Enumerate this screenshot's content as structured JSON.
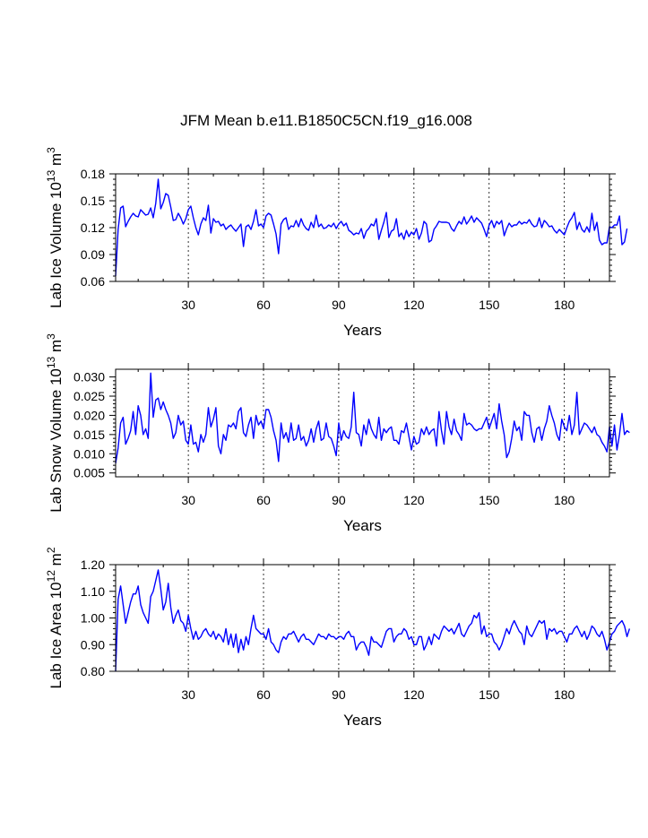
{
  "title": "JFM Mean b.e11.B1850C5CN.f19_g16.008",
  "line_color": "#0000ff",
  "chart_data": [
    {
      "type": "line",
      "name": "lab-ice-volume",
      "ylabel_main": "Lab Ice Volume 10",
      "ylabel_exp": "13",
      "ylabel_unit": " m",
      "ylabel_unit_exp": "3",
      "xlabel": "Years",
      "xlim": [
        1,
        198
      ],
      "ylim": [
        0.06,
        0.18
      ],
      "yticks": [
        0.06,
        0.09,
        0.12,
        0.15,
        0.18
      ],
      "ytick_labels": [
        "0.06",
        "0.09",
        "0.12",
        "0.15",
        "0.18"
      ],
      "xticks": [
        30,
        60,
        90,
        120,
        150,
        180
      ],
      "xtick_labels": [
        "30",
        "60",
        "90",
        "120",
        "150",
        "180"
      ],
      "x_start": 1,
      "values": [
        0.066,
        0.118,
        0.142,
        0.144,
        0.121,
        0.127,
        0.132,
        0.136,
        0.133,
        0.132,
        0.14,
        0.137,
        0.134,
        0.135,
        0.142,
        0.131,
        0.147,
        0.174,
        0.141,
        0.148,
        0.158,
        0.156,
        0.143,
        0.128,
        0.129,
        0.136,
        0.131,
        0.124,
        0.13,
        0.14,
        0.144,
        0.131,
        0.12,
        0.112,
        0.124,
        0.131,
        0.128,
        0.145,
        0.114,
        0.13,
        0.126,
        0.127,
        0.122,
        0.124,
        0.118,
        0.121,
        0.123,
        0.119,
        0.116,
        0.12,
        0.124,
        0.099,
        0.121,
        0.123,
        0.118,
        0.127,
        0.14,
        0.122,
        0.124,
        0.12,
        0.133,
        0.136,
        0.134,
        0.124,
        0.113,
        0.091,
        0.124,
        0.129,
        0.131,
        0.118,
        0.122,
        0.121,
        0.128,
        0.121,
        0.13,
        0.123,
        0.119,
        0.117,
        0.126,
        0.12,
        0.134,
        0.121,
        0.124,
        0.119,
        0.12,
        0.123,
        0.121,
        0.125,
        0.119,
        0.124,
        0.127,
        0.122,
        0.125,
        0.117,
        0.115,
        0.112,
        0.114,
        0.113,
        0.119,
        0.108,
        0.116,
        0.119,
        0.124,
        0.122,
        0.13,
        0.107,
        0.117,
        0.126,
        0.137,
        0.109,
        0.116,
        0.118,
        0.13,
        0.11,
        0.114,
        0.107,
        0.117,
        0.11,
        0.115,
        0.112,
        0.119,
        0.107,
        0.114,
        0.127,
        0.124,
        0.104,
        0.106,
        0.118,
        0.122,
        0.127,
        0.126,
        0.126,
        0.126,
        0.125,
        0.119,
        0.116,
        0.122,
        0.127,
        0.124,
        0.132,
        0.124,
        0.128,
        0.133,
        0.126,
        0.131,
        0.128,
        0.125,
        0.118,
        0.11,
        0.123,
        0.128,
        0.12,
        0.127,
        0.124,
        0.128,
        0.111,
        0.119,
        0.125,
        0.121,
        0.123,
        0.123,
        0.127,
        0.124,
        0.126,
        0.125,
        0.129,
        0.124,
        0.121,
        0.122,
        0.131,
        0.12,
        0.128,
        0.125,
        0.121,
        0.122,
        0.117,
        0.114,
        0.118,
        0.115,
        0.112,
        0.12,
        0.127,
        0.131,
        0.137,
        0.118,
        0.126,
        0.118,
        0.115,
        0.121,
        0.115,
        0.136,
        0.117,
        0.126,
        0.106,
        0.101,
        0.103,
        0.103,
        0.121,
        0.12,
        0.123,
        0.123,
        0.133,
        0.101,
        0.104,
        0.119
      ]
    },
    {
      "type": "line",
      "name": "lab-snow-volume",
      "ylabel_main": "Lab Snow Volume 10",
      "ylabel_exp": "13",
      "ylabel_unit": " m",
      "ylabel_unit_exp": "3",
      "xlabel": "Years",
      "xlim": [
        1,
        198
      ],
      "ylim": [
        0.004,
        0.032
      ],
      "yticks": [
        0.005,
        0.01,
        0.015,
        0.02,
        0.025,
        0.03
      ],
      "ytick_labels": [
        "0.005",
        "0.010",
        "0.015",
        "0.020",
        "0.025",
        "0.030"
      ],
      "xticks": [
        30,
        60,
        90,
        120,
        150,
        180
      ],
      "xtick_labels": [
        "30",
        "60",
        "90",
        "120",
        "150",
        "180"
      ],
      "x_start": 1,
      "values": [
        0.0075,
        0.0115,
        0.018,
        0.0195,
        0.0125,
        0.014,
        0.016,
        0.021,
        0.015,
        0.0225,
        0.02,
        0.015,
        0.0165,
        0.014,
        0.031,
        0.0195,
        0.024,
        0.0245,
        0.0215,
        0.0235,
        0.0215,
        0.02,
        0.018,
        0.014,
        0.0155,
        0.02,
        0.0175,
        0.0185,
        0.0135,
        0.0125,
        0.0175,
        0.0125,
        0.013,
        0.0105,
        0.015,
        0.013,
        0.015,
        0.022,
        0.017,
        0.019,
        0.022,
        0.012,
        0.01,
        0.015,
        0.0135,
        0.0175,
        0.017,
        0.018,
        0.0165,
        0.021,
        0.022,
        0.0155,
        0.0145,
        0.0175,
        0.0195,
        0.014,
        0.02,
        0.0175,
        0.0185,
        0.0165,
        0.0215,
        0.0215,
        0.0195,
        0.016,
        0.0135,
        0.008,
        0.018,
        0.014,
        0.0155,
        0.013,
        0.018,
        0.0135,
        0.014,
        0.0175,
        0.0135,
        0.0145,
        0.012,
        0.0135,
        0.0165,
        0.013,
        0.0165,
        0.0185,
        0.0135,
        0.014,
        0.018,
        0.0145,
        0.014,
        0.012,
        0.0095,
        0.018,
        0.0135,
        0.016,
        0.0145,
        0.014,
        0.017,
        0.026,
        0.0155,
        0.015,
        0.012,
        0.0175,
        0.015,
        0.019,
        0.0165,
        0.015,
        0.014,
        0.0195,
        0.0135,
        0.0165,
        0.0155,
        0.0165,
        0.017,
        0.0135,
        0.0135,
        0.0125,
        0.016,
        0.0155,
        0.018,
        0.0145,
        0.011,
        0.0145,
        0.0125,
        0.013,
        0.0165,
        0.015,
        0.017,
        0.015,
        0.016,
        0.0165,
        0.012,
        0.021,
        0.016,
        0.0125,
        0.021,
        0.017,
        0.015,
        0.019,
        0.016,
        0.015,
        0.0135,
        0.0205,
        0.0175,
        0.018,
        0.0175,
        0.0165,
        0.016,
        0.0165,
        0.0165,
        0.018,
        0.0195,
        0.0165,
        0.0185,
        0.0205,
        0.0165,
        0.023,
        0.0185,
        0.015,
        0.009,
        0.0105,
        0.014,
        0.0185,
        0.016,
        0.017,
        0.0135,
        0.021,
        0.02,
        0.02,
        0.0155,
        0.013,
        0.0165,
        0.017,
        0.0135,
        0.0165,
        0.0185,
        0.0225,
        0.02,
        0.018,
        0.015,
        0.0135,
        0.019,
        0.017,
        0.016,
        0.02,
        0.015,
        0.0175,
        0.026,
        0.015,
        0.0165,
        0.018,
        0.0175,
        0.0165,
        0.0155,
        0.017,
        0.015,
        0.0145,
        0.013,
        0.012,
        0.0105,
        0.017,
        0.012,
        0.0175,
        0.011,
        0.015,
        0.0205,
        0.015,
        0.016,
        0.0155
      ]
    },
    {
      "type": "line",
      "name": "lab-ice-area",
      "ylabel_main": "Lab Ice Area 10",
      "ylabel_exp": "12",
      "ylabel_unit": " m",
      "ylabel_unit_exp": "2",
      "xlabel": "Years",
      "xlim": [
        1,
        198
      ],
      "ylim": [
        0.8,
        1.2
      ],
      "yticks": [
        0.8,
        0.9,
        1.0,
        1.1,
        1.2
      ],
      "ytick_labels": [
        "0.80",
        "0.90",
        "1.00",
        "1.10",
        "1.20"
      ],
      "xticks": [
        30,
        60,
        90,
        120,
        150,
        180
      ],
      "xtick_labels": [
        "30",
        "60",
        "90",
        "120",
        "150",
        "180"
      ],
      "x_start": 1,
      "values": [
        0.8,
        1.07,
        1.12,
        1.05,
        0.98,
        1.02,
        1.06,
        1.09,
        1.09,
        1.12,
        1.05,
        1.02,
        1.0,
        0.98,
        1.08,
        1.1,
        1.14,
        1.18,
        1.11,
        1.03,
        1.06,
        1.13,
        1.04,
        0.98,
        1.01,
        1.03,
        0.99,
        0.98,
        0.95,
        1.01,
        0.96,
        0.92,
        0.95,
        0.92,
        0.93,
        0.95,
        0.96,
        0.94,
        0.93,
        0.95,
        0.92,
        0.94,
        0.93,
        0.91,
        0.96,
        0.9,
        0.94,
        0.89,
        0.94,
        0.87,
        0.92,
        0.88,
        0.93,
        0.9,
        0.96,
        1.01,
        0.96,
        0.95,
        0.94,
        0.94,
        0.92,
        0.96,
        0.91,
        0.9,
        0.88,
        0.87,
        0.91,
        0.93,
        0.92,
        0.94,
        0.94,
        0.95,
        0.93,
        0.91,
        0.93,
        0.94,
        0.92,
        0.92,
        0.91,
        0.9,
        0.92,
        0.94,
        0.93,
        0.93,
        0.92,
        0.94,
        0.93,
        0.93,
        0.92,
        0.93,
        0.93,
        0.92,
        0.94,
        0.95,
        0.93,
        0.93,
        0.88,
        0.9,
        0.91,
        0.91,
        0.89,
        0.86,
        0.93,
        0.91,
        0.91,
        0.9,
        0.89,
        0.92,
        0.95,
        0.96,
        0.96,
        0.91,
        0.93,
        0.94,
        0.94,
        0.96,
        0.95,
        0.92,
        0.93,
        0.9,
        0.9,
        0.93,
        0.93,
        0.88,
        0.9,
        0.93,
        0.9,
        0.94,
        0.93,
        0.92,
        0.95,
        0.97,
        0.96,
        0.95,
        0.96,
        0.94,
        0.96,
        0.98,
        0.94,
        0.93,
        0.95,
        0.97,
        0.98,
        1.01,
        1.0,
        1.02,
        0.94,
        0.97,
        0.93,
        0.94,
        0.94,
        0.91,
        0.9,
        0.88,
        0.9,
        0.93,
        0.96,
        0.94,
        0.97,
        0.99,
        0.97,
        0.95,
        0.94,
        0.9,
        0.97,
        0.94,
        0.93,
        0.95,
        0.97,
        0.99,
        0.98,
        0.99,
        0.92,
        0.96,
        0.95,
        0.96,
        0.94,
        0.95,
        0.95,
        0.93,
        0.91,
        0.94,
        0.94,
        0.96,
        0.97,
        0.95,
        0.93,
        0.95,
        0.92,
        0.94,
        0.97,
        0.96,
        0.94,
        0.93,
        0.95,
        0.92,
        0.88,
        0.91,
        0.94,
        0.95,
        0.97,
        0.98,
        0.99,
        0.97,
        0.93,
        0.96
      ]
    }
  ]
}
